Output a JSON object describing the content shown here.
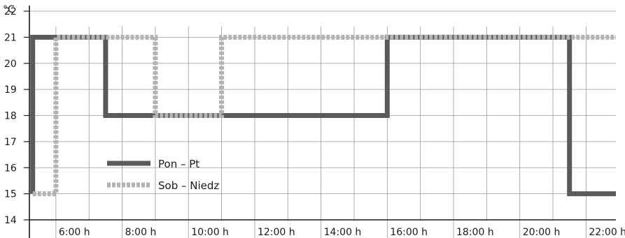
{
  "chart_data": {
    "type": "line",
    "ylabel": "°C",
    "ylim": [
      14,
      22
    ],
    "xlim": [
      5.2,
      22.9
    ],
    "yticks": [
      14,
      15,
      16,
      17,
      18,
      19,
      20,
      21,
      22
    ],
    "xticks": [
      {
        "value": 6,
        "label": "6:00 h"
      },
      {
        "value": 8,
        "label": "8:00 h"
      },
      {
        "value": 10,
        "label": "10:00 h"
      },
      {
        "value": 12,
        "label": "12:00 h"
      },
      {
        "value": 14,
        "label": "14:00 h"
      },
      {
        "value": 16,
        "label": "16:00 h"
      },
      {
        "value": 18,
        "label": "18:00 h"
      },
      {
        "value": 20,
        "label": "20:00 h"
      },
      {
        "value": 22,
        "label": "22:00 h"
      }
    ],
    "grid": true,
    "legend_position": "bottom-left",
    "series": [
      {
        "name": "Pon – Pt",
        "color": "#5a5a5a",
        "style": "solid",
        "x": [
          5.3,
          5.3,
          7.5,
          7.5,
          16.0,
          16.0,
          21.5,
          21.5,
          22.9
        ],
        "y": [
          15,
          21,
          21,
          18,
          18,
          21,
          21,
          15,
          15
        ]
      },
      {
        "name": "Sob – Niedz",
        "color": "#b3b3b3",
        "style": "dotted",
        "x": [
          5.3,
          6.0,
          6.0,
          9.0,
          9.0,
          11.0,
          11.0,
          22.9
        ],
        "y": [
          15,
          15,
          21,
          21,
          18,
          18,
          21,
          21
        ]
      }
    ]
  }
}
